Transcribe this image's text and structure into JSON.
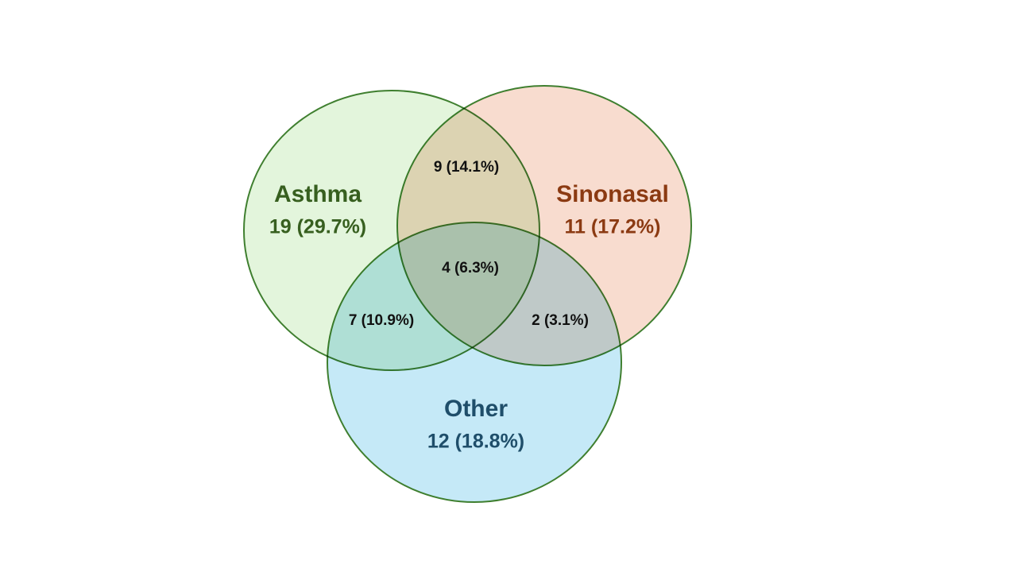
{
  "sets": [
    {
      "name": "Asthma",
      "count": "19 (29.7%)"
    },
    {
      "name": "Sinonasal",
      "count": "11 (17.2%)"
    },
    {
      "name": "Other",
      "count": "12 (18.8%)"
    }
  ],
  "intersections": [
    {
      "label": "9 (14.1%)"
    },
    {
      "label": "4 (6.3%)"
    },
    {
      "label": "7 (10.9%)"
    },
    {
      "label": "2 (3.1%)"
    }
  ]
}
